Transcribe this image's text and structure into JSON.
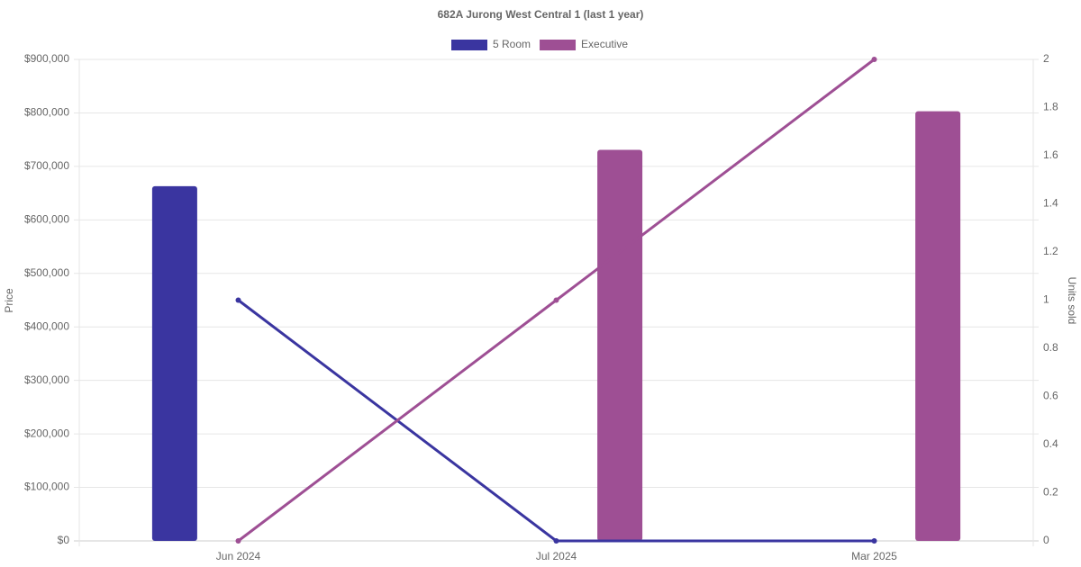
{
  "chart_data": {
    "type": "bar-line",
    "title": "682A Jurong West Central 1 (last 1 year)",
    "y_label": "Price",
    "y2_label": "Units sold",
    "categories": [
      "Jun 2024",
      "Jul 2024",
      "Mar 2025"
    ],
    "series": [
      {
        "name": "5 Room",
        "color": "#3a35a0",
        "values": [
          663000,
          null,
          null
        ],
        "units": [
          1,
          0,
          0
        ]
      },
      {
        "name": "Executive",
        "color": "#9e4f94",
        "values": [
          null,
          731000,
          803000
        ],
        "units": [
          0,
          1,
          2
        ]
      }
    ],
    "ylim": [
      0,
      900000
    ],
    "yticks": [
      {
        "value": 0,
        "label": "$0"
      },
      {
        "value": 100000,
        "label": "$100,000"
      },
      {
        "value": 200000,
        "label": "$200,000"
      },
      {
        "value": 300000,
        "label": "$300,000"
      },
      {
        "value": 400000,
        "label": "$400,000"
      },
      {
        "value": 500000,
        "label": "$500,000"
      },
      {
        "value": 600000,
        "label": "$600,000"
      },
      {
        "value": 700000,
        "label": "$700,000"
      },
      {
        "value": 800000,
        "label": "$800,000"
      },
      {
        "value": 900000,
        "label": "$900,000"
      }
    ],
    "y2lim": [
      0,
      2
    ],
    "y2ticks": [
      0,
      0.2,
      0.4,
      0.6,
      0.8,
      1,
      1.2,
      1.4,
      1.6,
      1.8,
      2
    ],
    "grid": true,
    "legend": "top"
  }
}
